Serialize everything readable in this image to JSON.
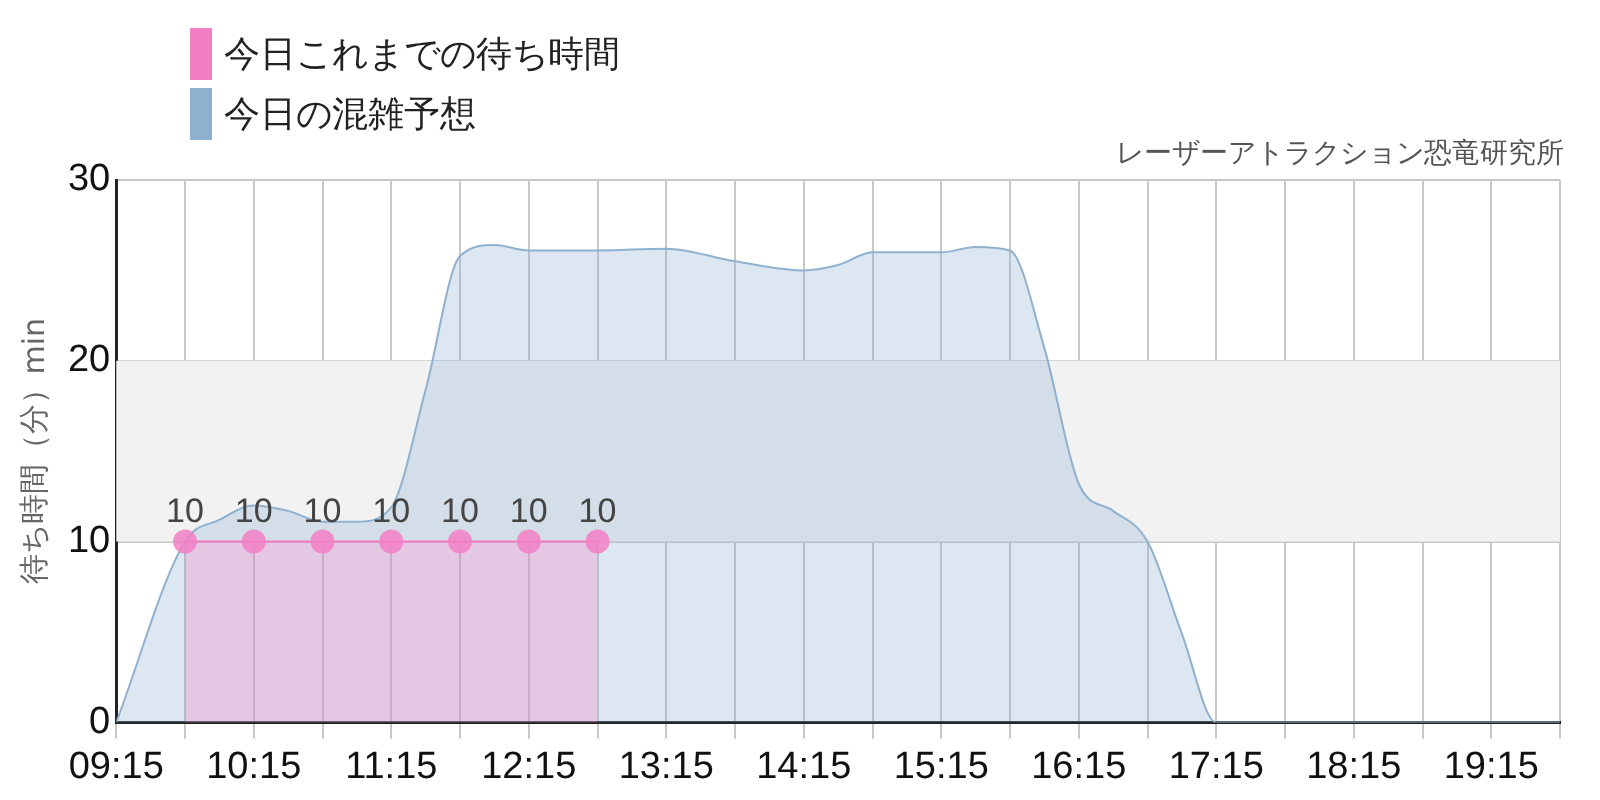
{
  "chart_data": {
    "type": "area",
    "subtitle": "レーザーアトラクション恐竜研究所",
    "ylabel": "待ち時間（分）min",
    "x": [
      9.25,
      9.75,
      10,
      10.25,
      10.5,
      10.75,
      11,
      11.25,
      11.5,
      11.75,
      12,
      12.25,
      12.75,
      13.25,
      13.75,
      14.25,
      14.5,
      14.75,
      15.25,
      15.5,
      15.75,
      16,
      16.25,
      16.5,
      16.75,
      17,
      17.25,
      17.5,
      18,
      18.5,
      19,
      19.5,
      19.75
    ],
    "series": [
      {
        "name": "今日これまでの待ち時間",
        "color": "#f27fc4",
        "marker": "circle",
        "x": [
          9.75,
          10.25,
          10.75,
          11.25,
          11.75,
          12.25,
          12.75
        ],
        "values": [
          10,
          10,
          10,
          10,
          10,
          10,
          10
        ],
        "value_labels": [
          "10",
          "10",
          "10",
          "10",
          "10",
          "10",
          "10"
        ]
      },
      {
        "name": "今日の混雑予想",
        "color": "#8fb1d0",
        "marker": "none",
        "values": [
          0,
          10,
          11.2,
          12,
          11.7,
          11.1,
          11.1,
          11.9,
          18.4,
          25.8,
          26.4,
          26.1,
          26.1,
          26.2,
          25.5,
          25,
          25.3,
          26,
          26,
          26.3,
          26.1,
          20.7,
          13.2,
          11.7,
          10,
          4.9,
          0,
          0,
          0,
          0,
          0,
          0,
          0
        ]
      }
    ],
    "xlim": [
      9.25,
      19.75
    ],
    "xticks": [
      {
        "value": 9.25,
        "label": "09:15"
      },
      {
        "value": 9.75,
        "label": null
      },
      {
        "value": 10.25,
        "label": "10:15"
      },
      {
        "value": 10.75,
        "label": null
      },
      {
        "value": 11.25,
        "label": "11:15"
      },
      {
        "value": 11.75,
        "label": null
      },
      {
        "value": 12.25,
        "label": "12:15"
      },
      {
        "value": 12.75,
        "label": null
      },
      {
        "value": 13.25,
        "label": "13:15"
      },
      {
        "value": 13.75,
        "label": null
      },
      {
        "value": 14.25,
        "label": "14:15"
      },
      {
        "value": 14.75,
        "label": null
      },
      {
        "value": 15.25,
        "label": "15:15"
      },
      {
        "value": 15.75,
        "label": null
      },
      {
        "value": 16.25,
        "label": "16:15"
      },
      {
        "value": 16.75,
        "label": null
      },
      {
        "value": 17.25,
        "label": "17:15"
      },
      {
        "value": 17.75,
        "label": null
      },
      {
        "value": 18.25,
        "label": "18:15"
      },
      {
        "value": 18.75,
        "label": null
      },
      {
        "value": 19.25,
        "label": "19:15"
      },
      {
        "value": 19.75,
        "label": null
      }
    ],
    "ylim": [
      0,
      30
    ],
    "yticks": [
      0,
      10,
      20,
      30
    ],
    "bands": [
      {
        "axis": "y",
        "from": 10,
        "to": 20,
        "color": "#f2f2f2"
      }
    ],
    "grid": true,
    "legend": "top left"
  }
}
